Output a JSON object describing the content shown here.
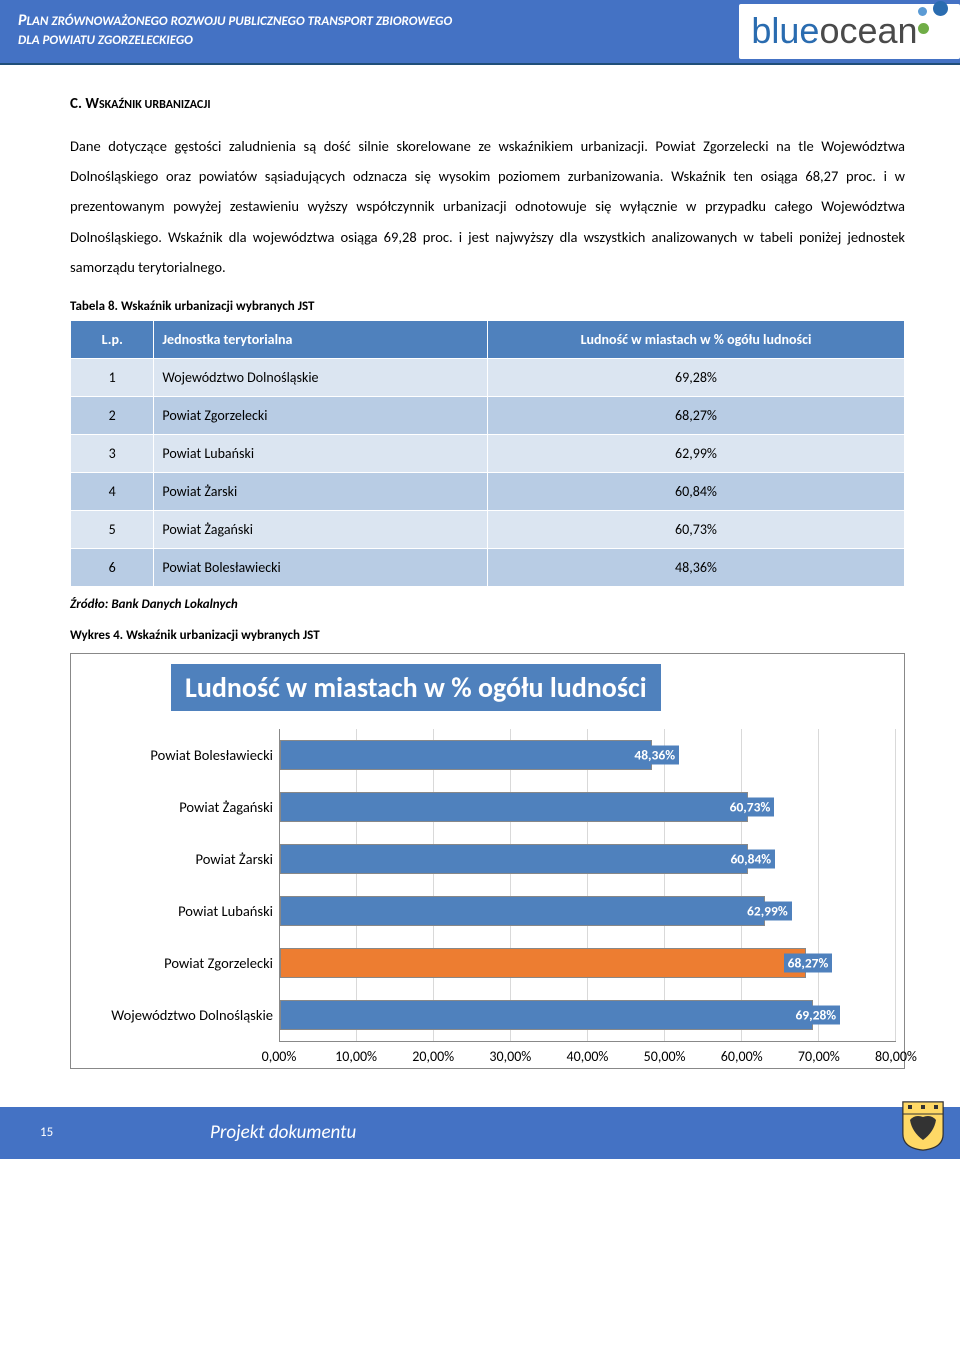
{
  "header": {
    "line1a": "P",
    "line1b": "LAN ZRÓWNOWAŻONEGO ROZWOJU PUBLICZNEGO TRANSPORT ZBIOROWEGO",
    "line2": "DLA POWIATU ZGORZELECKIEGO",
    "bg_color": "#4472c4",
    "text_color": "#ffffff"
  },
  "logo": {
    "text_blue": "blue",
    "text_grey": "ocean",
    "blue_color": "#2a6cb0",
    "grey_color": "#4a4a4a",
    "dot_color_blue": "#5b9bd5",
    "dot_color_green": "#70ad47"
  },
  "section": {
    "heading_prefix": "C.   ",
    "heading_letter": "W",
    "heading_rest": "SKAŹNIK URBANIZACJI",
    "paragraph": "Dane dotyczące gęstości zaludnienia są dość silnie skorelowane ze wskaźnikiem urbanizacji. Powiat Zgorzelecki na tle Województwa Dolnośląskiego oraz powiatów sąsiadujących odznacza się wysokim poziomem zurbanizowania. Wskaźnik ten osiąga 68,27 proc. i w prezentowanym powyżej zestawieniu wyższy współczynnik urbanizacji odnotowuje się wyłącznie w przypadku całego Województwa Dolnośląskiego. Wskaźnik dla województwa osiąga 69,28 proc. i jest najwyższy dla wszystkich analizowanych w tabeli poniżej jednostek samorządu terytorialnego."
  },
  "table": {
    "caption": "Tabela 8. Wskaźnik urbanizacji wybranych JST",
    "columns": [
      "L.p.",
      "Jednostka terytorialna",
      "Ludność w miastach w % ogółu ludności"
    ],
    "header_bg": "#4f81bd",
    "row_odd_bg": "#dbe5f1",
    "row_even_bg": "#b8cce4",
    "rows": [
      {
        "lp": "1",
        "name": "Województwo Dolnośląskie",
        "value": "69,28%"
      },
      {
        "lp": "2",
        "name": "Powiat Zgorzelecki",
        "value": "68,27%"
      },
      {
        "lp": "3",
        "name": "Powiat Lubański",
        "value": "62,99%"
      },
      {
        "lp": "4",
        "name": "Powiat Żarski",
        "value": "60,84%"
      },
      {
        "lp": "5",
        "name": "Powiat Żagański",
        "value": "60,73%"
      },
      {
        "lp": "6",
        "name": "Powiat Bolesławiecki",
        "value": "48,36%"
      }
    ],
    "source": "Źródło: Bank Danych Lokalnych"
  },
  "chart": {
    "caption": "Wykres 4. Wskaźnik urbanizacji wybranych JST",
    "title": "Ludność w miastach w % ogółu ludności",
    "type": "bar-horizontal",
    "xlim": [
      0,
      80
    ],
    "xtick_step": 10,
    "xticks": [
      "0,00%",
      "10,00%",
      "20,00%",
      "30,00%",
      "40,00%",
      "50,00%",
      "60,00%",
      "70,00%",
      "80,00%"
    ],
    "bar_default_color": "#4f81bd",
    "bar_highlight_color": "#ed7d31",
    "bar_border_color": "#888888",
    "grid_color": "#d9d9d9",
    "label_bg_color": "#4f81bd",
    "label_text_color": "#ffffff",
    "title_bg": "#4f81bd",
    "title_fontsize": 28,
    "ylabel_fontsize": 14.5,
    "datalabel_fontsize": 13.5,
    "series": [
      {
        "label": "Powiat Bolesławiecki",
        "value": 48.36,
        "value_label": "48,36%",
        "highlight": false
      },
      {
        "label": "Powiat Żagański",
        "value": 60.73,
        "value_label": "60,73%",
        "highlight": false
      },
      {
        "label": "Powiat Żarski",
        "value": 60.84,
        "value_label": "60,84%",
        "highlight": false
      },
      {
        "label": "Powiat Lubański",
        "value": 62.99,
        "value_label": "62,99%",
        "highlight": false
      },
      {
        "label": "Powiat Zgorzelecki",
        "value": 68.27,
        "value_label": "68,27%",
        "highlight": true
      },
      {
        "label": "Województwo Dolnośląskie",
        "value": 69.28,
        "value_label": "69,28%",
        "highlight": false
      }
    ]
  },
  "footer": {
    "page": "15",
    "title": "Projekt dokumentu",
    "bg_color": "#4472c4"
  }
}
